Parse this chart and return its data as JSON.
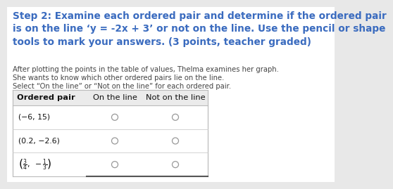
{
  "title": "Step 2: Examine each ordered pair and determine if the ordered pair\nis on the line ‘y = -2x + 3’ or not on the line. Use the pencil or shape\ntools to mark your answers. (3 points, teacher graded)",
  "subtitle1": "After plotting the points in the table of values, Thelma examines her graph.",
  "subtitle2": "She wants to know which other ordered pairs lie on the line.",
  "subtitle3": "Select “On the line” or “Not on the line” for each ordered pair.",
  "col_headers": [
    "Ordered pair",
    "On the line",
    "Not on the line"
  ],
  "title_color": "#3a6bbf",
  "body_text_color": "#444444",
  "bg_color": "#e8e8e8",
  "table_bg": "#f5f5f5",
  "title_fontsize": 9.8,
  "body_fontsize": 7.2,
  "table_fontsize": 7.8,
  "header_fontsize": 8.2,
  "row1": "(−6, 15)",
  "row2": "(0.2, −2.6)",
  "row3_math": true
}
